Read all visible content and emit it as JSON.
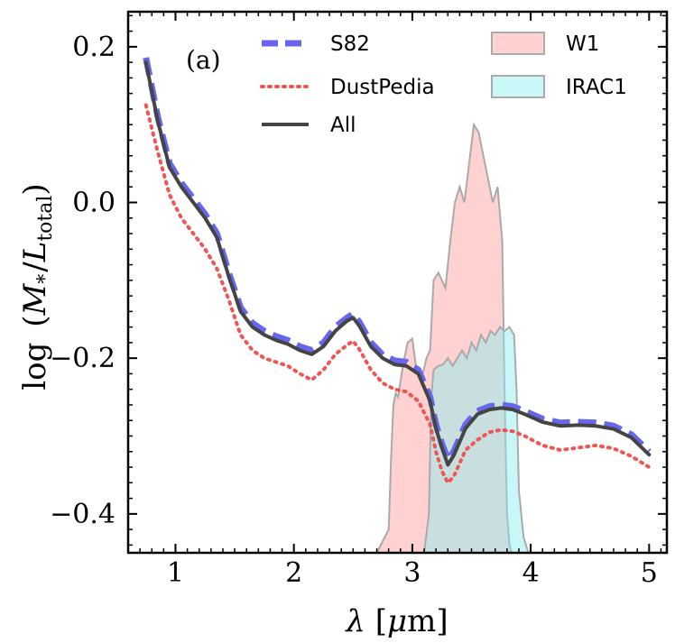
{
  "chart_data": {
    "type": "line",
    "panel_label": "(a)",
    "xlabel": {
      "symbol": "λ",
      "unit_open": " [",
      "unit_symbol": "μ",
      "unit_rest": "m]"
    },
    "ylabel": {
      "prefix": "log",
      "open": "(",
      "numerator": "M",
      "num_sub": "*",
      "slash": "/",
      "denominator": "L",
      "den_sub": "total",
      "close": ")"
    },
    "xlim": [
      0.6,
      5.15
    ],
    "ylim": [
      -0.45,
      0.245
    ],
    "x_ticks": [
      1,
      2,
      3,
      4,
      5
    ],
    "x_tick_labels": [
      "1",
      "2",
      "3",
      "4",
      "5"
    ],
    "y_ticks": [
      0.2,
      0.0,
      -0.2,
      -0.4
    ],
    "y_tick_labels": [
      "0.2",
      "0.0",
      "−0.2",
      "−0.4"
    ],
    "series": [
      {
        "name": "S82",
        "style": "dashed",
        "color": "#6666ee",
        "x": [
          0.75,
          0.85,
          0.95,
          1.05,
          1.15,
          1.25,
          1.35,
          1.45,
          1.55,
          1.65,
          1.75,
          1.85,
          1.95,
          2.05,
          2.15,
          2.25,
          2.35,
          2.45,
          2.5,
          2.55,
          2.65,
          2.75,
          2.85,
          2.95,
          3.05,
          3.15,
          3.2,
          3.25,
          3.3,
          3.35,
          3.45,
          3.55,
          3.65,
          3.75,
          3.85,
          3.95,
          4.1,
          4.25,
          4.4,
          4.55,
          4.7,
          4.85,
          5.0
        ],
        "y": [
          0.186,
          0.11,
          0.05,
          0.025,
          0.005,
          -0.015,
          -0.04,
          -0.09,
          -0.135,
          -0.155,
          -0.165,
          -0.172,
          -0.177,
          -0.185,
          -0.19,
          -0.18,
          -0.16,
          -0.148,
          -0.143,
          -0.153,
          -0.18,
          -0.196,
          -0.203,
          -0.205,
          -0.215,
          -0.25,
          -0.285,
          -0.31,
          -0.33,
          -0.32,
          -0.285,
          -0.268,
          -0.262,
          -0.26,
          -0.262,
          -0.268,
          -0.278,
          -0.283,
          -0.282,
          -0.283,
          -0.287,
          -0.298,
          -0.32
        ]
      },
      {
        "name": "DustPedia",
        "style": "dotted",
        "color": "#ee5555",
        "x": [
          0.75,
          0.85,
          0.95,
          1.05,
          1.15,
          1.25,
          1.35,
          1.45,
          1.55,
          1.65,
          1.75,
          1.85,
          1.95,
          2.05,
          2.15,
          2.25,
          2.35,
          2.45,
          2.5,
          2.55,
          2.65,
          2.75,
          2.85,
          2.95,
          3.05,
          3.15,
          3.2,
          3.25,
          3.3,
          3.35,
          3.45,
          3.55,
          3.65,
          3.75,
          3.85,
          3.95,
          4.1,
          4.25,
          4.4,
          4.55,
          4.7,
          4.85,
          5.0
        ],
        "y": [
          0.125,
          0.065,
          0.01,
          -0.02,
          -0.04,
          -0.06,
          -0.085,
          -0.125,
          -0.17,
          -0.19,
          -0.2,
          -0.205,
          -0.21,
          -0.22,
          -0.228,
          -0.215,
          -0.195,
          -0.183,
          -0.178,
          -0.188,
          -0.215,
          -0.232,
          -0.24,
          -0.243,
          -0.255,
          -0.285,
          -0.32,
          -0.345,
          -0.36,
          -0.352,
          -0.318,
          -0.305,
          -0.295,
          -0.292,
          -0.294,
          -0.3,
          -0.312,
          -0.318,
          -0.315,
          -0.312,
          -0.316,
          -0.326,
          -0.34
        ]
      },
      {
        "name": "All",
        "style": "solid",
        "color": "#444444",
        "x": [
          0.75,
          0.85,
          0.95,
          1.05,
          1.15,
          1.25,
          1.35,
          1.45,
          1.55,
          1.65,
          1.75,
          1.85,
          1.95,
          2.05,
          2.15,
          2.25,
          2.35,
          2.45,
          2.5,
          2.55,
          2.65,
          2.75,
          2.85,
          2.95,
          3.05,
          3.15,
          3.2,
          3.25,
          3.3,
          3.35,
          3.45,
          3.55,
          3.65,
          3.75,
          3.85,
          3.95,
          4.1,
          4.25,
          4.4,
          4.55,
          4.7,
          4.85,
          5.0
        ],
        "y": [
          0.18,
          0.105,
          0.045,
          0.02,
          0.0,
          -0.02,
          -0.045,
          -0.095,
          -0.14,
          -0.16,
          -0.17,
          -0.177,
          -0.182,
          -0.19,
          -0.195,
          -0.185,
          -0.165,
          -0.152,
          -0.148,
          -0.158,
          -0.185,
          -0.2,
          -0.208,
          -0.21,
          -0.22,
          -0.255,
          -0.29,
          -0.315,
          -0.337,
          -0.325,
          -0.29,
          -0.272,
          -0.266,
          -0.264,
          -0.266,
          -0.272,
          -0.282,
          -0.287,
          -0.286,
          -0.287,
          -0.291,
          -0.302,
          -0.324
        ]
      }
    ],
    "bands": [
      {
        "name": "W1",
        "fill": "#ff9999",
        "fill_opacity": 0.45,
        "edge": "#aaaaaa",
        "x": [
          2.7,
          2.8,
          2.82,
          2.84,
          2.86,
          2.88,
          2.92,
          2.96,
          3.0,
          3.04,
          3.08,
          3.12,
          3.15,
          3.18,
          3.22,
          3.28,
          3.32,
          3.36,
          3.4,
          3.44,
          3.48,
          3.52,
          3.56,
          3.6,
          3.64,
          3.68,
          3.72,
          3.76,
          3.78,
          3.8,
          3.82,
          3.84
        ],
        "y": [
          -0.45,
          -0.42,
          -0.33,
          -0.26,
          -0.245,
          -0.25,
          -0.21,
          -0.18,
          -0.175,
          -0.22,
          -0.225,
          -0.2,
          -0.19,
          -0.1,
          -0.09,
          -0.11,
          -0.05,
          -0.0,
          0.02,
          -0.0,
          0.05,
          0.1,
          0.09,
          0.06,
          0.03,
          0.0,
          0.02,
          -0.05,
          -0.25,
          -0.4,
          -0.44,
          -0.45
        ]
      },
      {
        "name": "IRAC1",
        "fill": "#88eeee",
        "fill_opacity": 0.45,
        "edge": "#aaaaaa",
        "x": [
          3.1,
          3.14,
          3.16,
          3.18,
          3.22,
          3.26,
          3.3,
          3.34,
          3.38,
          3.42,
          3.46,
          3.5,
          3.54,
          3.58,
          3.62,
          3.66,
          3.7,
          3.74,
          3.78,
          3.82,
          3.86,
          3.88,
          3.9,
          3.94,
          3.98
        ],
        "y": [
          -0.45,
          -0.4,
          -0.25,
          -0.215,
          -0.21,
          -0.208,
          -0.2,
          -0.21,
          -0.2,
          -0.19,
          -0.2,
          -0.18,
          -0.19,
          -0.17,
          -0.18,
          -0.165,
          -0.17,
          -0.16,
          -0.165,
          -0.16,
          -0.17,
          -0.24,
          -0.37,
          -0.43,
          -0.45
        ]
      }
    ],
    "legend": [
      {
        "label": "S82",
        "kind": "dashed",
        "color": "#6666ee"
      },
      {
        "label": "DustPedia",
        "kind": "dotted",
        "color": "#ee5555"
      },
      {
        "label": "All",
        "kind": "solid",
        "color": "#444444"
      },
      {
        "label": "W1",
        "kind": "patch",
        "color": "#ff9999",
        "edge": "#aaaaaa"
      },
      {
        "label": "IRAC1",
        "kind": "patch",
        "color": "#88eeee",
        "edge": "#aaaaaa"
      }
    ]
  }
}
